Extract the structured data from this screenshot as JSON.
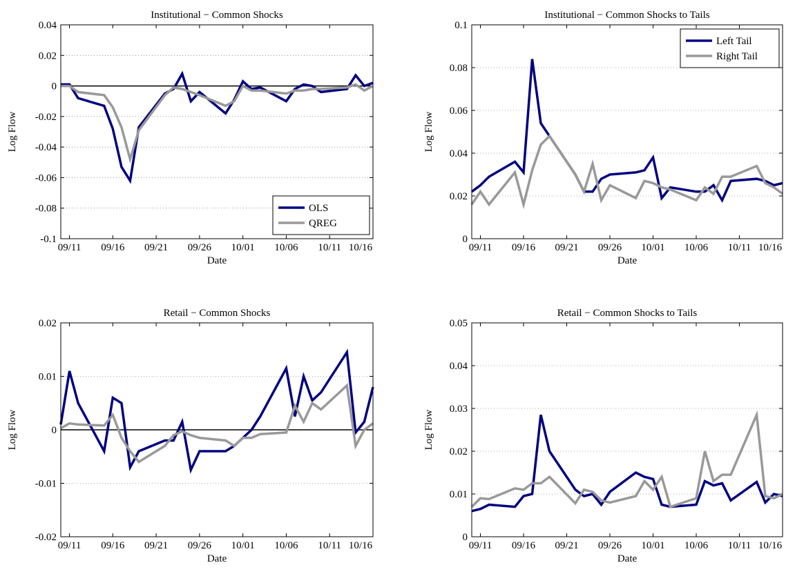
{
  "chart_data": [
    {
      "type": "line",
      "title": "Institutional − Common Shocks",
      "x_label": "Date",
      "y_label": "Log Flow",
      "x": [
        "09/10",
        "09/11",
        "09/12",
        "09/15",
        "09/16",
        "09/17",
        "09/18",
        "09/19",
        "09/22",
        "09/23",
        "09/24",
        "09/25",
        "09/26",
        "09/29",
        "09/30",
        "10/01",
        "10/02",
        "10/03",
        "10/06",
        "10/07",
        "10/08",
        "10/09",
        "10/10",
        "10/13",
        "10/14",
        "10/15",
        "10/16"
      ],
      "xlim": [
        "09/10",
        "10/16"
      ],
      "xticks": [
        "09/11",
        "09/16",
        "09/21",
        "09/26",
        "10/01",
        "10/06",
        "10/11",
        "10/16"
      ],
      "ylim": [
        -0.1,
        0.04
      ],
      "yticks": [
        -0.1,
        -0.08,
        -0.06,
        -0.04,
        -0.02,
        0,
        0.02,
        0.04
      ],
      "grid": true,
      "zero_line": true,
      "legend": "lower right",
      "series": [
        {
          "name": "OLS",
          "color": "#000080",
          "values": [
            0.001,
            0.001,
            -0.008,
            -0.013,
            -0.028,
            -0.053,
            -0.062,
            -0.027,
            -0.005,
            -0.002,
            0.008,
            -0.01,
            -0.004,
            -0.018,
            -0.009,
            0.003,
            -0.002,
            -0.001,
            -0.01,
            -0.002,
            0.001,
            0.0,
            -0.004,
            -0.002,
            0.007,
            0.0,
            0.002
          ]
        },
        {
          "name": "QREG",
          "color": "#999999",
          "values": [
            0.0,
            0.0,
            -0.004,
            -0.006,
            -0.014,
            -0.027,
            -0.048,
            -0.029,
            -0.006,
            -0.001,
            -0.002,
            -0.004,
            -0.006,
            -0.013,
            -0.01,
            0.0,
            -0.003,
            -0.003,
            -0.005,
            -0.003,
            -0.003,
            -0.002,
            -0.002,
            -0.001,
            0.001,
            -0.003,
            0.0
          ]
        }
      ]
    },
    {
      "type": "line",
      "title": "Institutional − Common Shocks to Tails",
      "x_label": "Date",
      "y_label": "Log Flow",
      "x": [
        "09/10",
        "09/11",
        "09/12",
        "09/15",
        "09/16",
        "09/17",
        "09/18",
        "09/19",
        "09/22",
        "09/23",
        "09/24",
        "09/25",
        "09/26",
        "09/29",
        "09/30",
        "10/01",
        "10/02",
        "10/03",
        "10/06",
        "10/07",
        "10/08",
        "10/09",
        "10/10",
        "10/13",
        "10/14",
        "10/15",
        "10/16"
      ],
      "xlim": [
        "09/10",
        "10/16"
      ],
      "xticks": [
        "09/11",
        "09/16",
        "09/21",
        "09/26",
        "10/01",
        "10/06",
        "10/11",
        "10/16"
      ],
      "ylim": [
        0,
        0.1
      ],
      "yticks": [
        0,
        0.02,
        0.04,
        0.06,
        0.08,
        0.1
      ],
      "grid": true,
      "zero_line": false,
      "legend": "upper right",
      "series": [
        {
          "name": "Left Tail",
          "color": "#000080",
          "values": [
            0.022,
            0.025,
            0.029,
            0.036,
            0.031,
            0.084,
            0.054,
            0.048,
            0.03,
            0.022,
            0.022,
            0.028,
            0.03,
            0.031,
            0.032,
            0.038,
            0.019,
            0.024,
            0.022,
            0.022,
            0.025,
            0.018,
            0.027,
            0.028,
            0.027,
            0.025,
            0.026
          ]
        },
        {
          "name": "Right Tail",
          "color": "#999999",
          "values": [
            0.016,
            0.022,
            0.016,
            0.031,
            0.016,
            0.032,
            0.044,
            0.048,
            0.03,
            0.022,
            0.035,
            0.018,
            0.025,
            0.019,
            0.027,
            0.026,
            0.024,
            0.023,
            0.018,
            0.024,
            0.021,
            0.029,
            0.029,
            0.034,
            0.026,
            0.024,
            0.021
          ]
        }
      ]
    },
    {
      "type": "line",
      "title": "Retail − Common Shocks",
      "x_label": "Date",
      "y_label": "Log Flow",
      "x": [
        "09/10",
        "09/11",
        "09/12",
        "09/15",
        "09/16",
        "09/17",
        "09/18",
        "09/19",
        "09/22",
        "09/23",
        "09/24",
        "09/25",
        "09/26",
        "09/29",
        "09/30",
        "10/01",
        "10/02",
        "10/03",
        "10/06",
        "10/07",
        "10/08",
        "10/09",
        "10/10",
        "10/13",
        "10/14",
        "10/15",
        "10/16"
      ],
      "xlim": [
        "09/10",
        "10/16"
      ],
      "xticks": [
        "09/11",
        "09/16",
        "09/21",
        "09/26",
        "10/01",
        "10/06",
        "10/11",
        "10/16"
      ],
      "ylim": [
        -0.02,
        0.02
      ],
      "yticks": [
        -0.02,
        -0.01,
        0,
        0.01,
        0.02
      ],
      "grid": true,
      "zero_line": true,
      "series": [
        {
          "color": "#000080",
          "values": [
            0.001,
            0.011,
            0.005,
            -0.004,
            0.006,
            0.005,
            -0.007,
            -0.004,
            -0.002,
            -0.002,
            0.0015,
            -0.0075,
            -0.004,
            -0.004,
            -0.003,
            -0.0015,
            0,
            0.0025,
            0.0115,
            0.0025,
            0.01,
            0.0055,
            0.007,
            0.0145,
            -0.0005,
            0.0015,
            0.008
          ]
        },
        {
          "color": "#999999",
          "values": [
            0.0003,
            0.0012,
            0.001,
            0.0008,
            0.0028,
            -0.0015,
            -0.004,
            -0.006,
            -0.003,
            -0.001,
            -0.0003,
            -0.001,
            -0.0015,
            -0.002,
            -0.003,
            -0.0015,
            -0.0015,
            -0.0008,
            -0.0005,
            0.0045,
            0.0015,
            0.005,
            0.0038,
            0.0083,
            -0.003,
            0,
            0.0012
          ]
        }
      ]
    },
    {
      "type": "line",
      "title": "Retail − Common Shocks to Tails",
      "x_label": "Date",
      "y_label": "Log Flow",
      "x": [
        "09/10",
        "09/11",
        "09/12",
        "09/15",
        "09/16",
        "09/17",
        "09/18",
        "09/19",
        "09/22",
        "09/23",
        "09/24",
        "09/25",
        "09/26",
        "09/29",
        "09/30",
        "10/01",
        "10/02",
        "10/03",
        "10/06",
        "10/07",
        "10/08",
        "10/09",
        "10/10",
        "10/13",
        "10/14",
        "10/15",
        "10/16"
      ],
      "xlim": [
        "09/10",
        "10/16"
      ],
      "xticks": [
        "09/11",
        "09/16",
        "09/21",
        "09/26",
        "10/01",
        "10/06",
        "10/11",
        "10/16"
      ],
      "ylim": [
        0,
        0.05
      ],
      "yticks": [
        0,
        0.01,
        0.02,
        0.03,
        0.04,
        0.05
      ],
      "grid": true,
      "zero_line": false,
      "series": [
        {
          "color": "#000080",
          "values": [
            0.006,
            0.0065,
            0.0075,
            0.007,
            0.0095,
            0.01,
            0.0285,
            0.02,
            0.011,
            0.0095,
            0.01,
            0.0075,
            0.0105,
            0.015,
            0.014,
            0.0135,
            0.0075,
            0.007,
            0.0075,
            0.013,
            0.012,
            0.0125,
            0.0085,
            0.0128,
            0.008,
            0.01,
            0.0095
          ]
        },
        {
          "color": "#999999",
          "values": [
            0.007,
            0.009,
            0.0088,
            0.0113,
            0.011,
            0.0125,
            0.0125,
            0.014,
            0.0078,
            0.011,
            0.0105,
            0.0085,
            0.008,
            0.0095,
            0.013,
            0.011,
            0.014,
            0.007,
            0.009,
            0.02,
            0.013,
            0.0145,
            0.0145,
            0.0285,
            0.0095,
            0.009,
            0.01
          ]
        }
      ]
    }
  ]
}
